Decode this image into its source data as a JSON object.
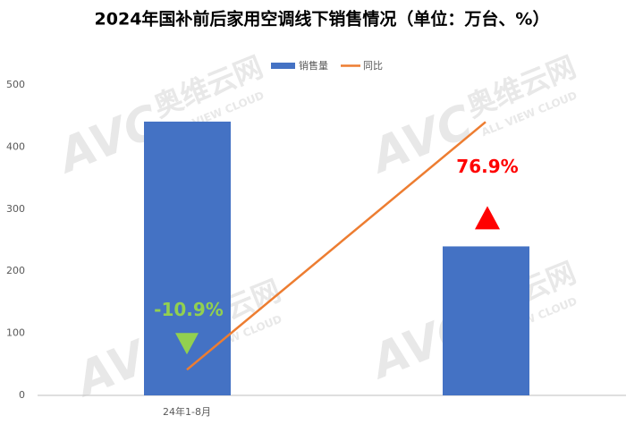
{
  "chart_data": {
    "type": "bar-line",
    "title": "2024年国补前后家用空调线下销售情况（单位：万台、%）",
    "categories": [
      "24年1-8月",
      null
    ],
    "series": [
      {
        "name": "销售量",
        "type": "bar",
        "color": "#4472c4",
        "values": [
          441,
          240
        ]
      },
      {
        "name": "同比",
        "type": "line",
        "axis": "y2",
        "color": "#ed7d31",
        "values": [
          -10.9,
          76.9
        ],
        "value_labels": [
          "-10.9%",
          "76.9%"
        ],
        "label_colors": [
          "#92d050",
          "#ff0000"
        ]
      }
    ],
    "ylim": [
      0,
      500
    ],
    "yticks": [
      0,
      100,
      200,
      300,
      400,
      500
    ],
    "y2lim": [
      -20,
      90
    ],
    "grid": false,
    "legend": "top",
    "watermark": {
      "logo": "AVC",
      "brand": "奥维云网",
      "sub": "ALL VIEW CLOUD"
    }
  }
}
